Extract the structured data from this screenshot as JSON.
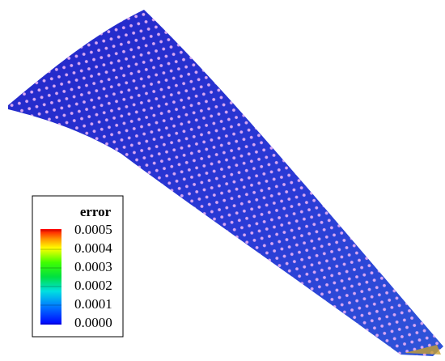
{
  "colorbar": {
    "title": "error",
    "lim": [
      0,
      0.0005
    ],
    "ticks": [
      {
        "value": 0.0005,
        "label": "0.0005"
      },
      {
        "value": 0.0004,
        "label": "0.0004"
      },
      {
        "value": 0.0003,
        "label": "0.0003"
      },
      {
        "value": 0.0002,
        "label": "0.0002"
      },
      {
        "value": 0.0001,
        "label": "0.0001"
      },
      {
        "value": 0,
        "label": "0.0000"
      }
    ]
  }
}
